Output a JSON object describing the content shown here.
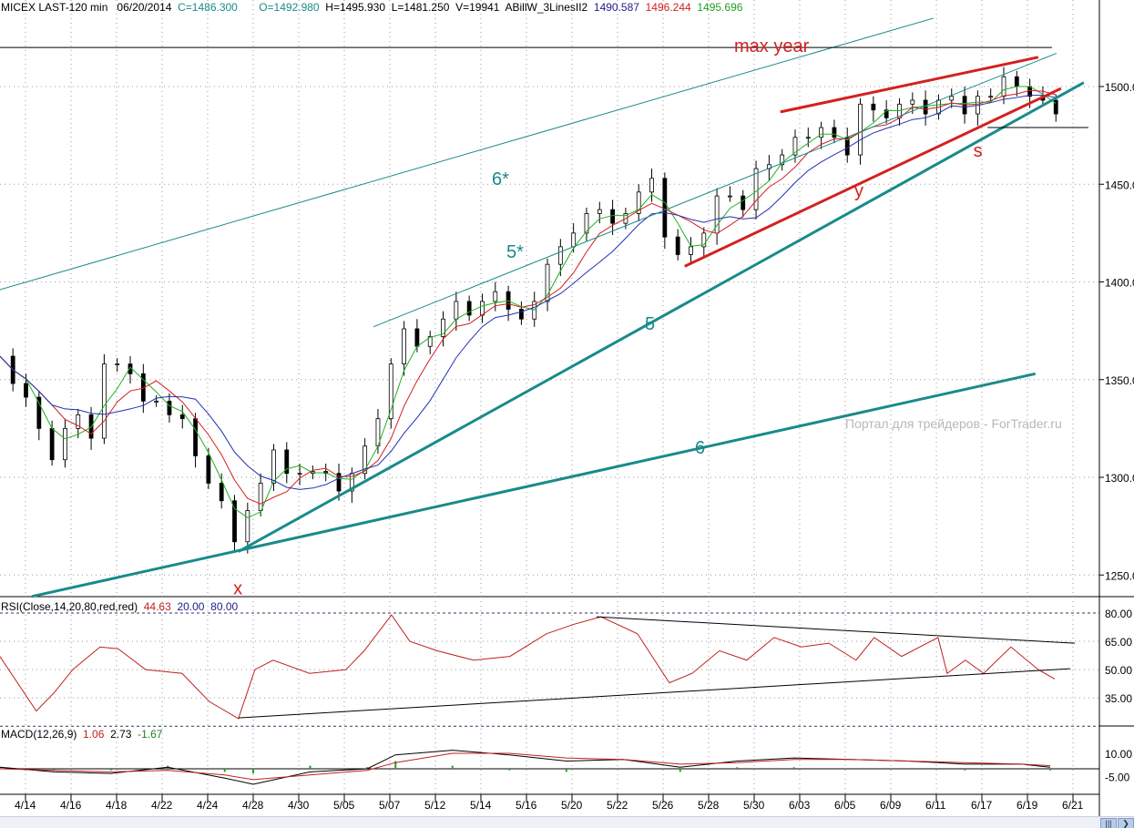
{
  "header": {
    "symbol": "MICEX LAST-120 min",
    "date": "06/20/2014",
    "close": "C=1486.300",
    "open": "O=1492.980",
    "high": "H=1495.930",
    "low": "L=1481.250",
    "volume": "V=19941",
    "indicator": "ABillW_3LinesII2",
    "ind_v1": "1490.587",
    "ind_v2": "1496.244",
    "ind_v3": "1495.696"
  },
  "rsi_header": {
    "label": "RSI(Close,14,20,80,red,red)",
    "value": "44.63",
    "low": "20.00",
    "high": "80.00"
  },
  "macd_header": {
    "label": "MACD(12,26,9)",
    "v1": "1.06",
    "v2": "2.73",
    "v3": "-1.67"
  },
  "watermark": "Портал для трейдеров - ForTrader.ru",
  "colors": {
    "teal": "#1a8a8a",
    "red": "#d42020",
    "green": "#22b022",
    "blue": "#2030b0"
  },
  "chart_data": [
    {
      "type": "candlestick",
      "title": "MICEX LAST-120 min",
      "x_unit": "bar",
      "x_start_bar": -4.5,
      "x_end_bar": 181,
      "closes": [
        1362,
        1348,
        1341,
        1325,
        1309,
        1325,
        1332,
        1320,
        1358,
        1358,
        1353,
        1339,
        1339,
        1332,
        1330,
        1311,
        1297,
        1288,
        1267,
        1283,
        1297,
        1314,
        1302,
        1302,
        1303,
        1302,
        1293,
        1302,
        1316,
        1330,
        1358,
        1376,
        1367,
        1372,
        1381,
        1390,
        1383,
        1390,
        1395,
        1386,
        1381,
        1390,
        1409,
        1418,
        1425,
        1435,
        1437,
        1430,
        1435,
        1446,
        1453,
        1423,
        1414,
        1418,
        1425,
        1444,
        1444,
        1437,
        1458,
        1460,
        1465,
        1474,
        1474,
        1479,
        1474,
        1465,
        1491,
        1488,
        1484,
        1491,
        1493,
        1486,
        1493,
        1495,
        1486,
        1495,
        1495,
        1505,
        1500,
        1495,
        1493,
        1486
      ],
      "ylim": [
        1230,
        1545
      ],
      "yticks": [
        "1250.0",
        "1300.0",
        "1350.0",
        "1400.0",
        "1450.0",
        "1500.0"
      ],
      "xticks": [
        "4/14",
        "4/16",
        "4/18",
        "4/22",
        "4/24",
        "4/28",
        "4/30",
        "5/05",
        "5/07",
        "5/12",
        "5/14",
        "5/16",
        "5/20",
        "5/22",
        "5/26",
        "5/28",
        "5/30",
        "6/03",
        "6/05",
        "6/09",
        "6/11",
        "6/17",
        "6/19",
        "6/21"
      ],
      "trendlines": [
        {
          "name": "line-6",
          "label": "6",
          "color": "#1a8a8a",
          "width": 3,
          "p1": [
            1.1,
            1239
          ],
          "p2": [
            177.4,
            1353
          ]
        },
        {
          "name": "line-5",
          "label": "5",
          "color": "#1a8a8a",
          "width": 3,
          "p1": [
            37.4,
            1262
          ],
          "p2": [
            185.9,
            1502
          ]
        },
        {
          "name": "line-6-star",
          "label": "6*",
          "color": "#1a8a8a",
          "width": 1,
          "p1": [
            -4.5,
            1396
          ],
          "p2": [
            159.5,
            1535
          ]
        },
        {
          "name": "line-5-star",
          "label": "5*",
          "color": "#1a8a8a",
          "width": 1,
          "p1": [
            61.1,
            1377
          ],
          "p2": [
            181.1,
            1517
          ]
        },
        {
          "name": "red-upper",
          "label": "",
          "color": "#d42020",
          "width": 3,
          "p1": [
            132.6,
            1487
          ],
          "p2": [
            177.9,
            1515
          ]
        },
        {
          "name": "red-lower",
          "label": "y",
          "color": "#d42020",
          "width": 3,
          "p1": [
            115.8,
            1408
          ],
          "p2": [
            181.9,
            1499
          ]
        },
        {
          "name": "max-year",
          "label": "max  year",
          "color": "#000000",
          "width": 1,
          "p1": [
            -4.5,
            1520
          ],
          "p2": [
            180.3,
            1520
          ]
        },
        {
          "name": "support",
          "label": "",
          "color": "#000000",
          "width": 1,
          "p1": [
            169,
            1479
          ],
          "p2": [
            186.7,
            1479
          ]
        }
      ],
      "annotations": [
        {
          "text": "x",
          "bar": 36.5,
          "price": 1240,
          "color": "#d42020"
        },
        {
          "text": "s",
          "bar": 166.5,
          "price": 1464,
          "color": "#d42020"
        }
      ]
    },
    {
      "type": "line",
      "title": "RSI(Close,14,20,80,red,red)",
      "ylim": [
        20,
        80
      ],
      "yticks": [
        "80.00",
        "65.00",
        "50.00",
        "35.00"
      ],
      "bars": [
        -4.5,
        1.9,
        5.1,
        8.3,
        13.1,
        16.3,
        21.1,
        27.5,
        32.3,
        37.4,
        40.3,
        43.5,
        49.9,
        56.3,
        59.5,
        64.3,
        67.5,
        72.3,
        78.7,
        85.1,
        91.5,
        96.3,
        101.1,
        107.5,
        113.1,
        117.1,
        121.9,
        126.7,
        131.5,
        136.3,
        141.1,
        145.9,
        149.1,
        153.9,
        160.3,
        161.9,
        165.1,
        168.3,
        173.1,
        177.9,
        180.8
      ],
      "values": [
        57,
        28,
        38,
        50,
        62,
        61,
        50,
        48,
        33,
        24,
        50,
        55,
        48,
        50,
        60,
        79,
        65,
        60,
        55,
        57,
        69,
        74,
        78,
        69,
        43,
        48,
        60,
        55,
        67,
        62,
        64,
        55,
        67,
        57,
        67,
        48,
        55,
        48,
        62,
        50,
        45
      ],
      "trendlines": [
        {
          "p1": [
            100.3,
            78
          ],
          "p2": [
            184.3,
            64
          ]
        },
        {
          "p1": [
            37.4,
            24.4
          ],
          "p2": [
            183.5,
            50.5
          ]
        }
      ]
    },
    {
      "type": "line",
      "title": "MACD(12,26,9)",
      "yticks": [
        "10.00",
        "-5.00"
      ],
      "bars": [
        -4.5,
        5,
        15,
        25,
        35,
        40,
        50,
        60,
        65,
        75,
        85,
        95,
        105,
        115,
        125,
        135,
        145,
        155,
        165,
        175,
        180
      ],
      "macd": [
        1,
        -2,
        -3,
        1,
        -6,
        -10,
        -2,
        0,
        9,
        12,
        9,
        5,
        6,
        1,
        5,
        7,
        6,
        5,
        3,
        3,
        1
      ],
      "signal": [
        0,
        -1,
        -2,
        -1,
        -4,
        -7,
        -4,
        -1,
        4,
        10,
        10,
        7,
        6,
        3,
        4,
        6,
        6,
        5,
        4,
        3,
        2
      ]
    }
  ]
}
